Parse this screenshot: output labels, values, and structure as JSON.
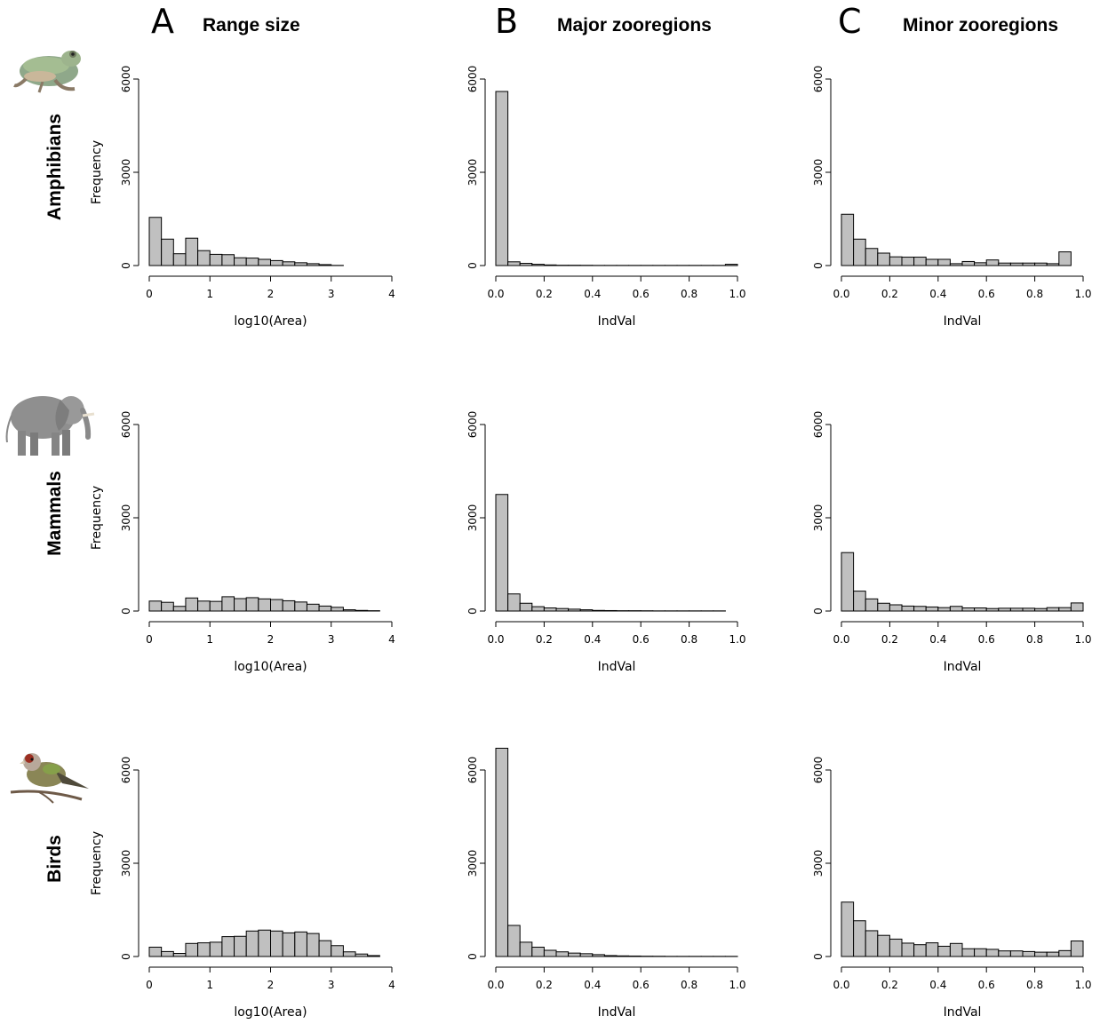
{
  "columns": [
    {
      "letter": "A",
      "title": "Range size"
    },
    {
      "letter": "B",
      "title": "Major zooregions"
    },
    {
      "letter": "C",
      "title": "Minor zooregions"
    }
  ],
  "rows": [
    {
      "label": "Amphibians",
      "icon": "frog-icon"
    },
    {
      "label": "Mammals",
      "icon": "elephant-icon"
    },
    {
      "label": "Birds",
      "icon": "bird-icon"
    }
  ],
  "chart_data": [
    {
      "type": "bar",
      "row": 0,
      "col": 0,
      "xlabel": "log10(Area)",
      "ylabel": "Frequency",
      "xlim": [
        0,
        4
      ],
      "ylim": [
        0,
        6000
      ],
      "xticks": [
        "0",
        "1",
        "2",
        "3",
        "4"
      ],
      "yticks": [
        "0",
        "3000",
        "6000"
      ],
      "bin_start": 0,
      "bin_width": 0.2,
      "values": [
        1550,
        850,
        380,
        880,
        480,
        360,
        350,
        250,
        240,
        200,
        160,
        120,
        90,
        60,
        30,
        5
      ]
    },
    {
      "type": "bar",
      "row": 0,
      "col": 1,
      "xlabel": "IndVal",
      "ylabel": "",
      "xlim": [
        0,
        1
      ],
      "ylim": [
        0,
        6000
      ],
      "xticks": [
        "0.0",
        "0.2",
        "0.4",
        "0.6",
        "0.8",
        "1.0"
      ],
      "yticks": [
        "0",
        "3000",
        "6000"
      ],
      "bin_start": 0,
      "bin_width": 0.05,
      "values": [
        5600,
        120,
        70,
        40,
        20,
        10,
        10,
        8,
        5,
        5,
        5,
        5,
        5,
        5,
        5,
        5,
        5,
        5,
        5,
        40
      ]
    },
    {
      "type": "bar",
      "row": 0,
      "col": 2,
      "xlabel": "IndVal",
      "ylabel": "",
      "xlim": [
        0,
        1
      ],
      "ylim": [
        0,
        6000
      ],
      "xticks": [
        "0.0",
        "0.2",
        "0.4",
        "0.6",
        "0.8",
        "1.0"
      ],
      "yticks": [
        "0",
        "3000",
        "6000"
      ],
      "bin_start": 0,
      "bin_width": 0.05,
      "values": [
        1650,
        850,
        550,
        400,
        280,
        270,
        270,
        200,
        200,
        60,
        130,
        90,
        180,
        80,
        80,
        80,
        80,
        60,
        440
      ]
    },
    {
      "type": "bar",
      "row": 1,
      "col": 0,
      "xlabel": "log10(Area)",
      "ylabel": "Frequency",
      "xlim": [
        0,
        4
      ],
      "ylim": [
        0,
        6000
      ],
      "xticks": [
        "0",
        "1",
        "2",
        "3",
        "4"
      ],
      "yticks": [
        "0",
        "3000",
        "6000"
      ],
      "bin_start": 0,
      "bin_width": 0.2,
      "values": [
        320,
        280,
        150,
        420,
        320,
        310,
        460,
        400,
        430,
        390,
        370,
        330,
        290,
        220,
        160,
        120,
        40,
        20,
        10
      ]
    },
    {
      "type": "bar",
      "row": 1,
      "col": 1,
      "xlabel": "IndVal",
      "ylabel": "",
      "xlim": [
        0,
        1
      ],
      "ylim": [
        0,
        6000
      ],
      "xticks": [
        "0.0",
        "0.2",
        "0.4",
        "0.6",
        "0.8",
        "1.0"
      ],
      "yticks": [
        "0",
        "3000",
        "6000"
      ],
      "bin_start": 0,
      "bin_width": 0.05,
      "values": [
        3750,
        550,
        250,
        140,
        100,
        80,
        60,
        40,
        20,
        15,
        10,
        10,
        8,
        5,
        5,
        5,
        5,
        5,
        5
      ]
    },
    {
      "type": "bar",
      "row": 1,
      "col": 2,
      "xlabel": "IndVal",
      "ylabel": "",
      "xlim": [
        0,
        1
      ],
      "ylim": [
        0,
        6000
      ],
      "xticks": [
        "0.0",
        "0.2",
        "0.4",
        "0.6",
        "0.8",
        "1.0"
      ],
      "yticks": [
        "0",
        "3000",
        "6000"
      ],
      "bin_start": 0,
      "bin_width": 0.05,
      "values": [
        1880,
        640,
        390,
        250,
        200,
        160,
        150,
        130,
        110,
        150,
        100,
        100,
        80,
        90,
        90,
        90,
        80,
        110,
        110,
        260
      ]
    },
    {
      "type": "bar",
      "row": 2,
      "col": 0,
      "xlabel": "log10(Area)",
      "ylabel": "Frequency",
      "xlim": [
        0,
        4
      ],
      "ylim": [
        0,
        6000
      ],
      "xticks": [
        "0",
        "1",
        "2",
        "3",
        "4"
      ],
      "yticks": [
        "0",
        "3000",
        "6000"
      ],
      "bin_start": 0,
      "bin_width": 0.2,
      "values": [
        300,
        160,
        100,
        420,
        440,
        460,
        640,
        650,
        820,
        850,
        820,
        760,
        790,
        740,
        510,
        350,
        150,
        80,
        30
      ]
    },
    {
      "type": "bar",
      "row": 2,
      "col": 1,
      "xlabel": "IndVal",
      "ylabel": "",
      "xlim": [
        0,
        1
      ],
      "ylim": [
        0,
        6000
      ],
      "xticks": [
        "0.0",
        "0.2",
        "0.4",
        "0.6",
        "0.8",
        "1.0"
      ],
      "yticks": [
        "0",
        "3000",
        "6000"
      ],
      "bin_start": 0,
      "bin_width": 0.05,
      "values": [
        6700,
        1000,
        460,
        300,
        200,
        150,
        110,
        90,
        60,
        30,
        20,
        15,
        10,
        8,
        5,
        5,
        5,
        5,
        5,
        5
      ]
    },
    {
      "type": "bar",
      "row": 2,
      "col": 2,
      "xlabel": "IndVal",
      "ylabel": "",
      "xlim": [
        0,
        1
      ],
      "ylim": [
        0,
        6000
      ],
      "xticks": [
        "0.0",
        "0.2",
        "0.4",
        "0.6",
        "0.8",
        "1.0"
      ],
      "yticks": [
        "0",
        "3000",
        "6000"
      ],
      "bin_start": 0,
      "bin_width": 0.05,
      "values": [
        1750,
        1150,
        830,
        680,
        560,
        430,
        380,
        440,
        330,
        420,
        250,
        250,
        230,
        180,
        180,
        160,
        140,
        140,
        190,
        500
      ]
    }
  ],
  "colors": {
    "bar_fill": "#c0c0c0",
    "bar_stroke": "#000000"
  }
}
